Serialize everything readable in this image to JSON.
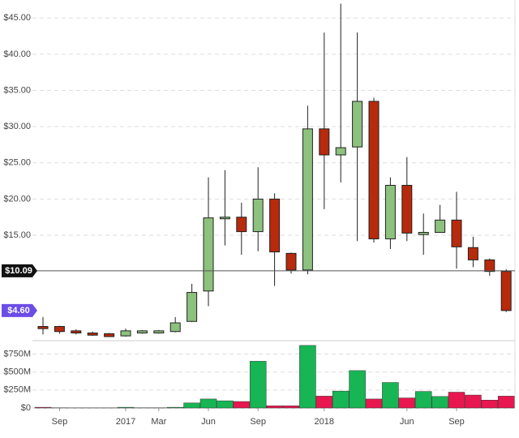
{
  "chart_data": {
    "type": "candlestick",
    "categories": [
      null,
      "Sep",
      null,
      null,
      null,
      "2017",
      null,
      "Mar",
      null,
      null,
      "Jun",
      null,
      null,
      "Sep",
      null,
      null,
      null,
      "2018",
      null,
      null,
      null,
      null,
      "Jun",
      null,
      null,
      "Sep",
      null,
      null,
      null
    ],
    "open": [
      2.4,
      2.4,
      1.8,
      1.5,
      1.4,
      1.1,
      1.5,
      1.5,
      1.7,
      3.1,
      7.3,
      17.3,
      17.5,
      15.5,
      20.0,
      12.5,
      10.2,
      29.7,
      26.1,
      27.2,
      33.5,
      14.5,
      21.9,
      15.1,
      15.4,
      17.1,
      13.3,
      11.6,
      10.0
    ],
    "high": [
      3.7,
      2.5,
      2.0,
      1.7,
      1.5,
      2.1,
      1.9,
      1.9,
      3.7,
      8.3,
      23.0,
      24.0,
      19.5,
      24.4,
      20.8,
      12.6,
      32.9,
      43.0,
      47.0,
      43.0,
      34.0,
      23.0,
      25.8,
      18.0,
      19.2,
      21.0,
      14.8,
      11.8,
      10.3
    ],
    "low": [
      1.3,
      1.4,
      1.3,
      1.1,
      1.0,
      1.0,
      1.4,
      1.4,
      1.6,
      3.0,
      5.2,
      13.6,
      12.3,
      12.8,
      8.0,
      9.7,
      9.6,
      18.6,
      22.3,
      14.2,
      14.0,
      13.1,
      14.2,
      12.3,
      15.4,
      10.4,
      10.6,
      9.4,
      4.4
    ],
    "close": [
      2.1,
      1.7,
      1.5,
      1.2,
      1.0,
      1.8,
      1.8,
      1.8,
      2.9,
      7.1,
      17.4,
      17.5,
      15.5,
      20.0,
      12.7,
      10.2,
      29.7,
      26.1,
      27.1,
      33.5,
      14.5,
      21.9,
      15.3,
      15.4,
      17.1,
      13.4,
      11.6,
      10.0,
      4.6
    ],
    "ylim": [
      1,
      47.5
    ],
    "yticks": [
      {
        "value": 15,
        "label": "$15.00"
      },
      {
        "value": 20,
        "label": "$20.00"
      },
      {
        "value": 25,
        "label": "$25.00"
      },
      {
        "value": 30,
        "label": "$30.00"
      },
      {
        "value": 35,
        "label": "$35.00"
      },
      {
        "value": 40,
        "label": "$40.00"
      },
      {
        "value": 45,
        "label": "$45.00"
      }
    ],
    "up_color": "#8cc17e",
    "down_color": "#b72a0c",
    "volume": {
      "values": [
        10,
        3,
        2,
        2,
        2,
        10,
        3,
        3,
        10,
        70,
        125,
        100,
        90,
        650,
        30,
        30,
        870,
        165,
        235,
        520,
        125,
        355,
        140,
        230,
        160,
        220,
        180,
        110,
        165
      ],
      "ylim": [
        0,
        880
      ],
      "yticks": [
        {
          "value": 0,
          "label": "$0"
        },
        {
          "value": 250,
          "label": "$250M"
        },
        {
          "value": 500,
          "label": "$500M"
        },
        {
          "value": 750,
          "label": "$750M"
        }
      ],
      "up_color": "#17b554",
      "down_color": "#e8174f"
    },
    "annotations": [
      {
        "value": 10.09,
        "label": "$10.09",
        "color": "#111111"
      },
      {
        "value": 4.6,
        "label": "$4.60",
        "color": "#6b4ce6"
      }
    ],
    "grid": true
  }
}
